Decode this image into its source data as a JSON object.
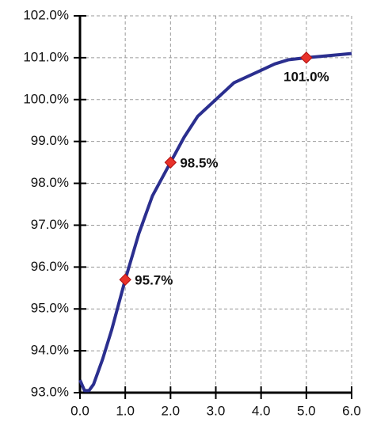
{
  "chart_data": {
    "type": "line",
    "series": [
      {
        "color": "#2b2f8f",
        "x": [
          0.0,
          0.1,
          0.2,
          0.3,
          0.5,
          0.7,
          1.0,
          1.3,
          1.6,
          2.0,
          2.3,
          2.6,
          3.0,
          3.2,
          3.4,
          3.7,
          4.0,
          4.3,
          4.6,
          5.0,
          5.5,
          6.0
        ],
        "values": [
          93.3,
          93.05,
          93.05,
          93.2,
          93.8,
          94.5,
          95.7,
          96.8,
          97.7,
          98.5,
          99.1,
          99.6,
          100.0,
          100.2,
          100.4,
          100.55,
          100.7,
          100.85,
          100.95,
          101.0,
          101.05,
          101.1
        ]
      },
      {
        "type": "scatter",
        "color": "#e8322a",
        "x": [
          1.0,
          2.0,
          5.0
        ],
        "values": [
          95.7,
          98.5,
          101.0
        ],
        "value_labels": [
          "95.7%",
          "98.5%",
          "101.0%"
        ]
      }
    ],
    "xlim": [
      0,
      6
    ],
    "ylim": [
      93,
      102
    ],
    "xticks": [
      {
        "value": 0,
        "label": "0.0"
      },
      {
        "value": 1,
        "label": "1.0"
      },
      {
        "value": 2,
        "label": "2.0"
      },
      {
        "value": 3,
        "label": "3.0"
      },
      {
        "value": 4,
        "label": "4.0"
      },
      {
        "value": 5,
        "label": "5.0"
      },
      {
        "value": 6,
        "label": "6.0"
      }
    ],
    "yticks": [
      {
        "value": 93,
        "label": "93.0%"
      },
      {
        "value": 94,
        "label": "94.0%"
      },
      {
        "value": 95,
        "label": "95.0%"
      },
      {
        "value": 96,
        "label": "96.0%"
      },
      {
        "value": 97,
        "label": "97.0%"
      },
      {
        "value": 98,
        "label": "98.0%"
      },
      {
        "value": 99,
        "label": "99.0%"
      },
      {
        "value": 100,
        "label": "100.0%"
      },
      {
        "value": 101,
        "label": "101.0%"
      },
      {
        "value": 102,
        "label": "102.0%"
      }
    ],
    "grid": true
  }
}
